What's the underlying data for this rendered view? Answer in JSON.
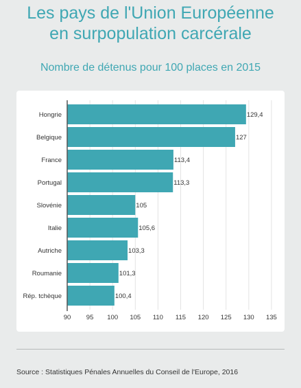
{
  "page": {
    "title_line1": "Les pays de l'Union Européenne",
    "title_line2": "en surpopulation carcérale",
    "subtitle": "Nombre de détenus pour 100 places en 2015",
    "source": "Source : Statistiques Pénales Annuelles du Conseil de l'Europe, 2016"
  },
  "colors": {
    "bar": "#3fa7b3",
    "title": "#3fa7b3",
    "background": "#e9ebeb",
    "card": "#ffffff"
  },
  "chart_data": {
    "type": "bar",
    "orientation": "horizontal",
    "categories": [
      "Hongrie",
      "Belgique",
      "France",
      "Portugal",
      "Slovénie",
      "Italie",
      "Autriche",
      "Roumanie",
      "Rép. tchèque"
    ],
    "values": [
      129.4,
      127,
      113.4,
      113.3,
      105,
      105.6,
      103.3,
      101.3,
      100.4
    ],
    "value_labels": [
      "129,4",
      "127",
      "113,4",
      "113,3",
      "105",
      "105,6",
      "103,3",
      "101,3",
      "100,4"
    ],
    "xlim": [
      90,
      135
    ],
    "xticks": [
      90,
      95,
      100,
      105,
      110,
      115,
      120,
      125,
      130,
      135
    ],
    "grid": "vertical",
    "legend": "none"
  }
}
